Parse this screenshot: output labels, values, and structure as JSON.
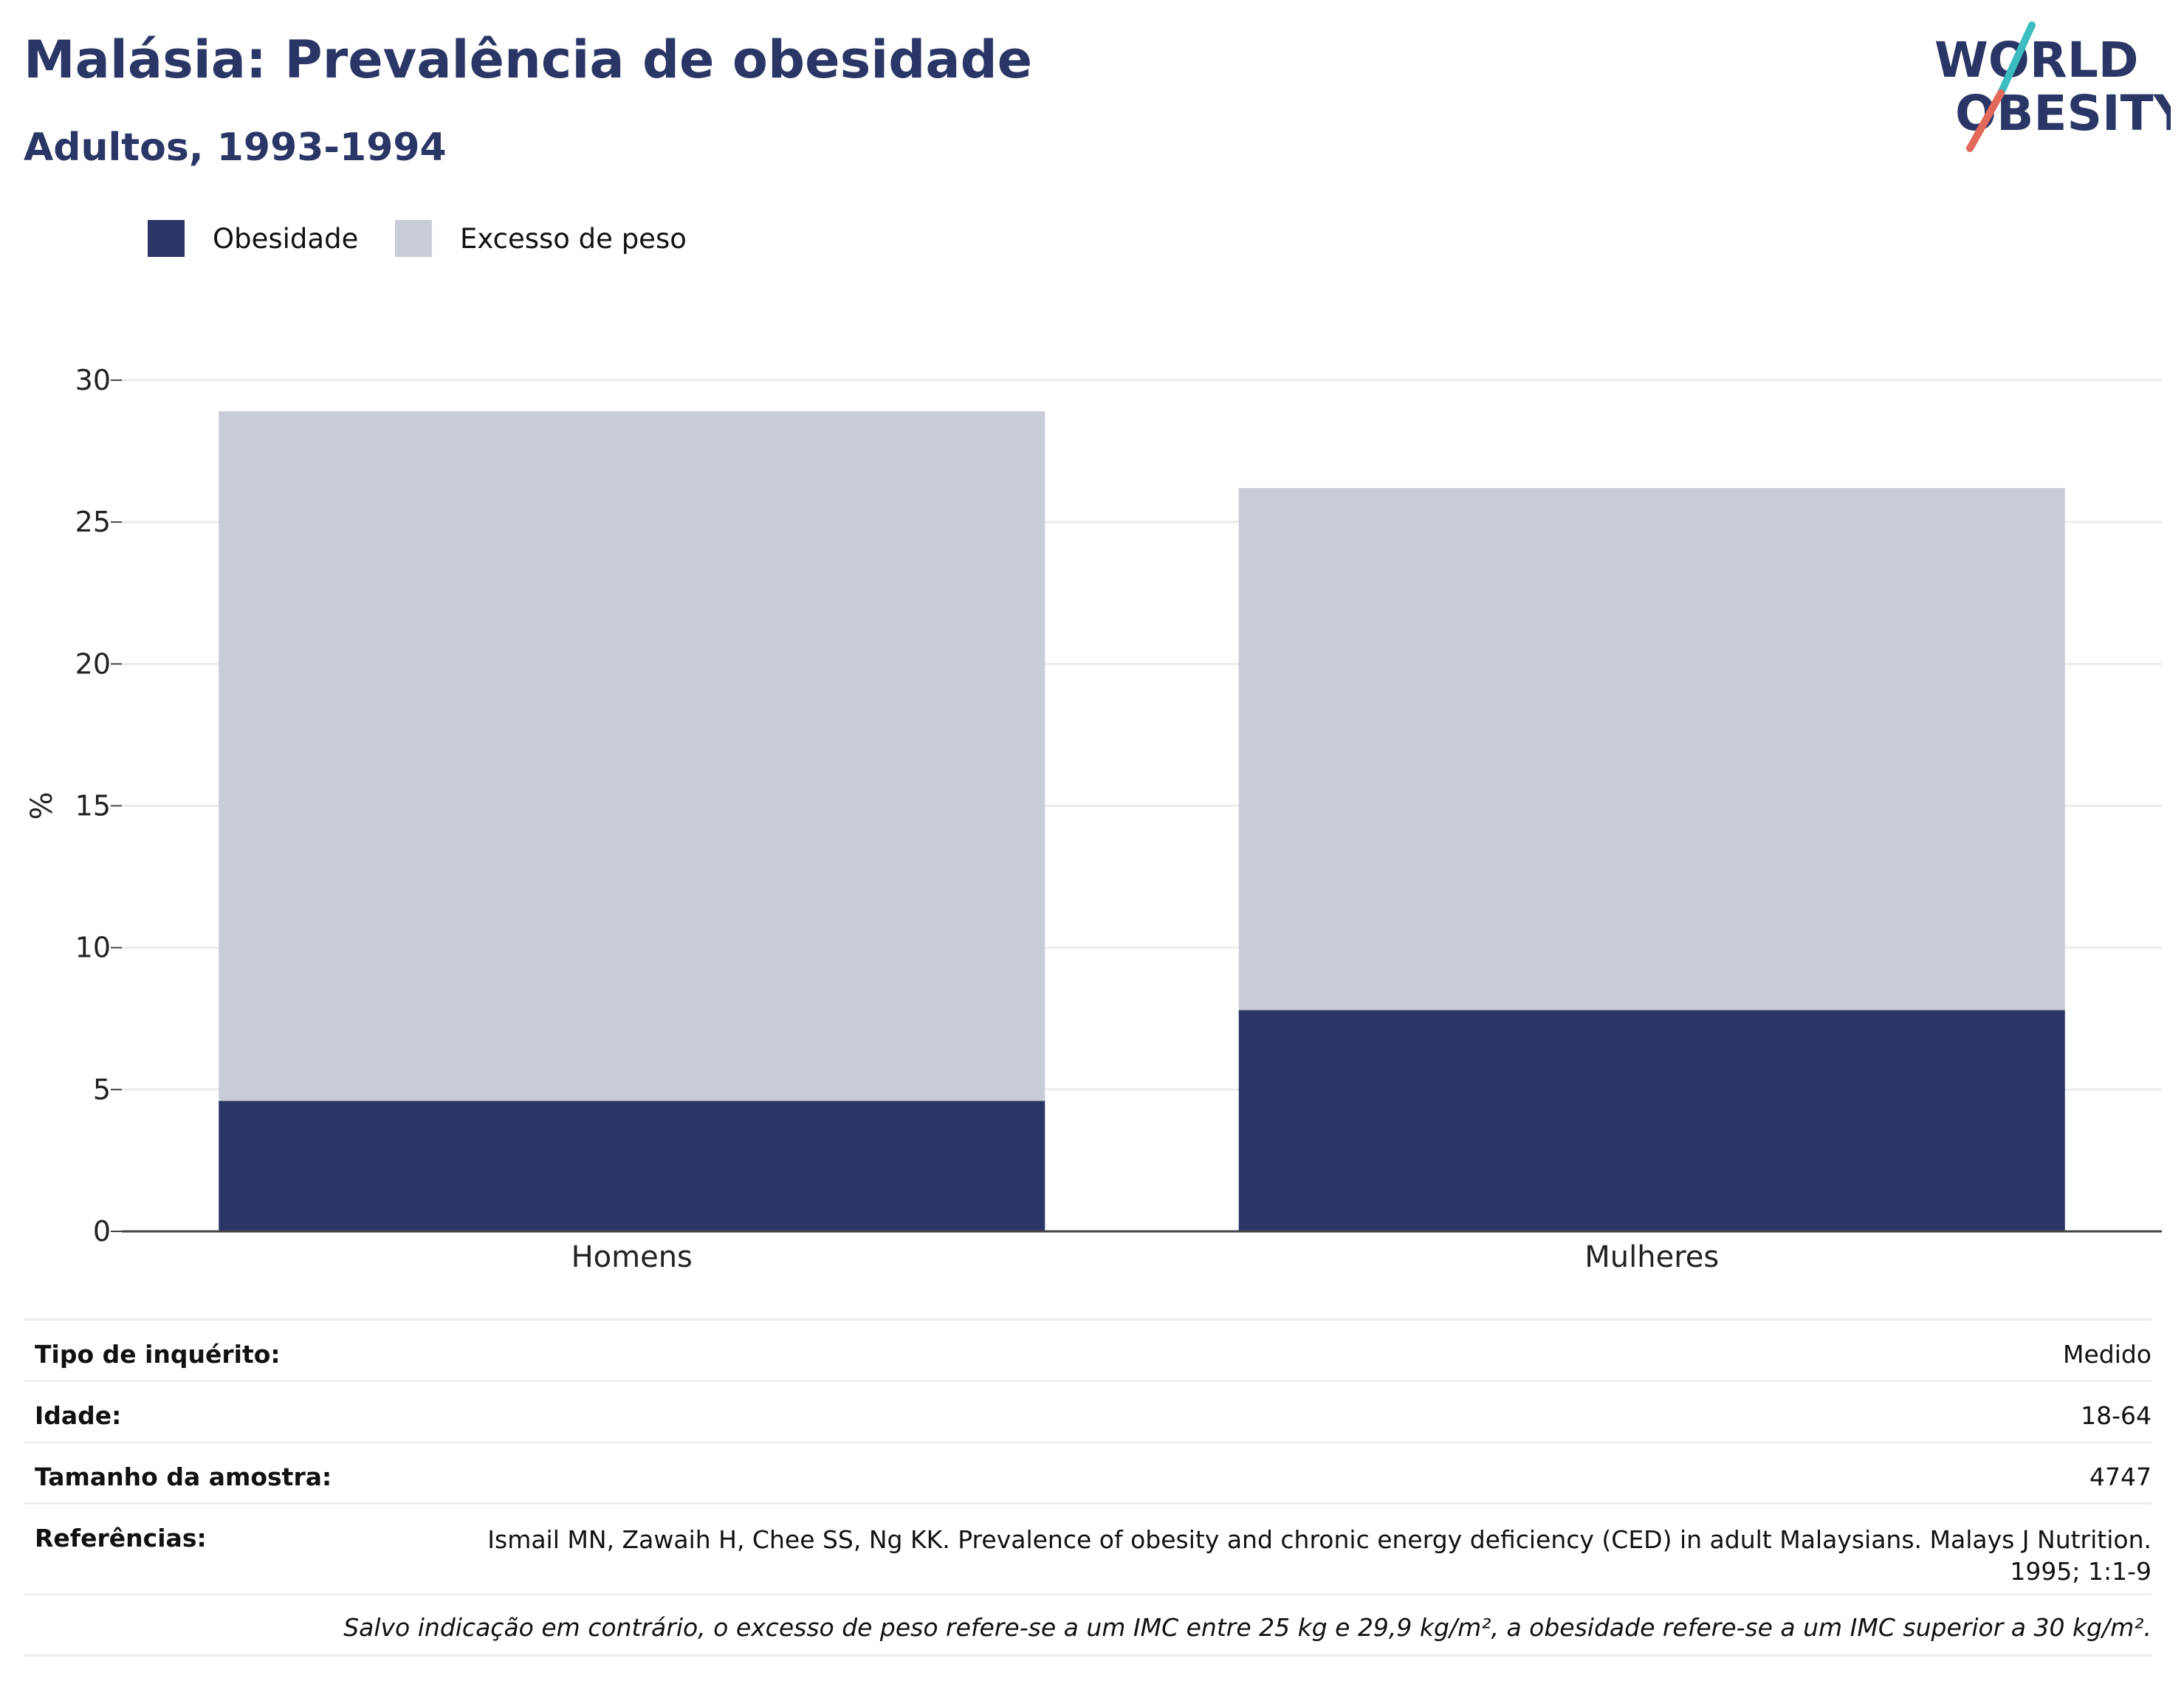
{
  "header": {
    "title": "Malásia: Prevalência de obesidade",
    "subtitle": "Adultos, 1993-1994"
  },
  "logo": {
    "line1": "WORLD",
    "line2": "OBESITY",
    "colors": {
      "text": "#2a3665",
      "slash_top": "#3bbcc0",
      "slash_bottom": "#e2685a"
    }
  },
  "legend": [
    {
      "label": "Obesidade",
      "color": "#2a3665"
    },
    {
      "label": "Excesso de peso",
      "color": "#c9cbd7"
    }
  ],
  "chart_data": {
    "type": "bar",
    "stacked": true,
    "categories": [
      "Homens",
      "Mulheres"
    ],
    "series": [
      {
        "name": "Obesidade",
        "values": [
          4.6,
          7.8
        ],
        "color": "#2a3665"
      },
      {
        "name": "Excesso de peso",
        "values": [
          24.3,
          18.4
        ],
        "color": "#c9cbd7"
      }
    ],
    "ylabel": "%",
    "ylim": [
      0,
      30
    ],
    "yticks": [
      0,
      5,
      10,
      15,
      20,
      25,
      30
    ],
    "grid": true,
    "legend_position": "top-left"
  },
  "info": {
    "survey_type_label": "Tipo de inquérito:",
    "survey_type_value": "Medido",
    "age_label": "Idade:",
    "age_value": "18-64",
    "sample_label": "Tamanho da amostra:",
    "sample_value": "4747",
    "ref_label": "Referências:",
    "ref_value": "Ismail MN, Zawaih H, Chee SS, Ng KK. Prevalence of obesity and chronic energy deficiency (CED) in adult Malaysians. Malays J Nutrition. 1995; 1:1-9",
    "note": "Salvo indicação em contrário, o excesso de peso refere-se a um IMC entre 25 kg e 29,9 kg/m², a obesidade refere-se a um IMC superior a 30 kg/m²."
  }
}
